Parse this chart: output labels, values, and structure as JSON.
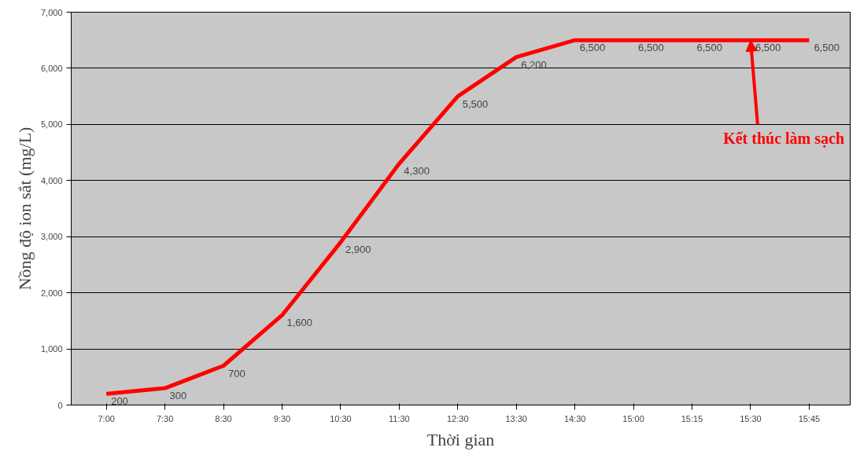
{
  "chart_data": {
    "type": "line",
    "xlabel": "Thời gian",
    "ylabel": "Nồng độ ion sắt (mg/L)",
    "categories": [
      "7:00",
      "7:30",
      "8:30",
      "9:30",
      "10:30",
      "11:30",
      "12:30",
      "13:30",
      "14:30",
      "15:00",
      "15:15",
      "15:30",
      "15:45"
    ],
    "series": [
      {
        "color": "#ff0000",
        "values": [
          200,
          300,
          700,
          1600,
          2900,
          4300,
          5500,
          6200,
          6500,
          6500,
          6500,
          6500,
          6500
        ],
        "value_labels": [
          "200",
          "300",
          "700",
          "1,600",
          "2,900",
          "4,300",
          "5,500",
          "6,200",
          "6,500",
          "6,500",
          "6,500",
          "6,500",
          "6,500"
        ]
      }
    ],
    "ylim": [
      0,
      7000
    ],
    "yticks": [
      0,
      {
        "value": 1000,
        "label": "1,000"
      },
      {
        "value": 2000,
        "label": "2,000"
      },
      {
        "value": 3000,
        "label": "3,000"
      },
      {
        "value": 4000,
        "label": "4,000"
      },
      {
        "value": 5000,
        "label": "5,000"
      },
      {
        "value": 6000,
        "label": "6,000"
      },
      {
        "value": 7000,
        "label": "7,000"
      }
    ],
    "grid": "y",
    "marker": "none",
    "line_style": "solid",
    "annotations": [
      {
        "text": "Kết thúc làm sạch",
        "x": "15:30",
        "y": 6500
      }
    ]
  }
}
